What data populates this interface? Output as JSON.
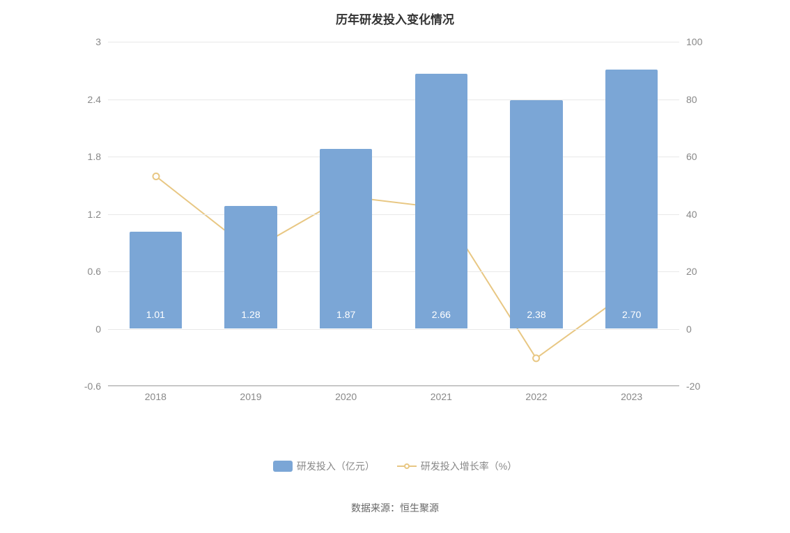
{
  "chart": {
    "title": "历年研发投入变化情况",
    "title_fontsize": 17,
    "title_color": "#333333",
    "background_color": "#ffffff",
    "grid_color": "#e8e8e8",
    "axis_color": "#999999",
    "label_color": "#888888",
    "label_fontsize": 14,
    "categories": [
      "2018",
      "2019",
      "2020",
      "2021",
      "2022",
      "2023"
    ],
    "left_axis": {
      "min": -0.6,
      "max": 3.0,
      "ticks": [
        -0.6,
        0,
        0.6,
        1.2,
        1.8,
        2.4,
        3.0
      ],
      "tick_labels": [
        "-0.6",
        "0",
        "0.6",
        "1.2",
        "1.8",
        "2.4",
        "3"
      ]
    },
    "right_axis": {
      "min": -20,
      "max": 100,
      "ticks": [
        -20,
        0,
        20,
        40,
        60,
        80,
        100
      ],
      "tick_labels": [
        "-20",
        "0",
        "20",
        "40",
        "60",
        "80",
        "100"
      ]
    },
    "bar_series": {
      "name": "研发投入（亿元）",
      "color": "#7ba6d6",
      "values": [
        1.01,
        1.28,
        1.87,
        2.66,
        2.38,
        2.7
      ],
      "value_labels": [
        "1.01",
        "1.28",
        "1.87",
        "2.66",
        "2.38",
        "2.70"
      ],
      "bar_width_ratio": 0.55,
      "label_color": "#ffffff"
    },
    "line_series": {
      "name": "研发投入增长率（%）",
      "color": "#e8c783",
      "marker_fill": "#ffffff",
      "marker_stroke": "#e8c783",
      "marker_radius": 4.5,
      "line_width": 2,
      "values": [
        53,
        27,
        46,
        42,
        -10.5,
        13.5
      ]
    },
    "legend": {
      "items": [
        {
          "type": "bar",
          "label": "研发投入（亿元）",
          "color": "#7ba6d6"
        },
        {
          "type": "line",
          "label": "研发投入增长率（%）",
          "color": "#e8c783"
        }
      ]
    },
    "source_prefix": "数据来源：",
    "source_name": "恒生聚源"
  }
}
